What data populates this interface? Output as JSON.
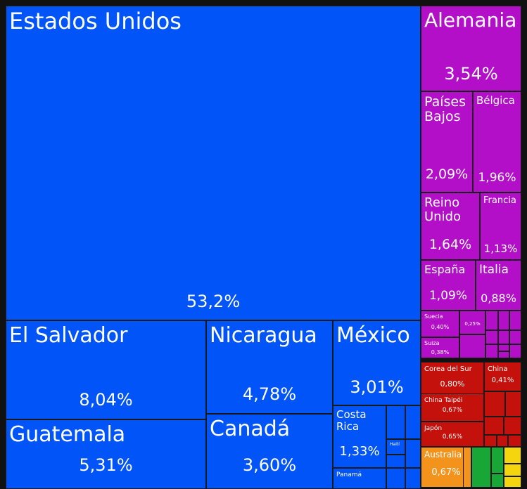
{
  "chart_data": {
    "type": "treemap",
    "unit": "%",
    "colors": {
      "america": "#0155f8",
      "europe": "#b30fc9",
      "asia": "#c5110b",
      "oceania": "#f4931b",
      "green": "#18a636",
      "yellow": "#f5d50d"
    },
    "items": [
      {
        "name": "Estados Unidos",
        "value": "53,2%",
        "group": "america"
      },
      {
        "name": "El Salvador",
        "value": "8,04%",
        "group": "america"
      },
      {
        "name": "Guatemala",
        "value": "5,31%",
        "group": "america"
      },
      {
        "name": "Nicaragua",
        "value": "4,78%",
        "group": "america"
      },
      {
        "name": "Canadá",
        "value": "3,60%",
        "group": "america"
      },
      {
        "name": "México",
        "value": "3,01%",
        "group": "america"
      },
      {
        "name": "Costa Rica",
        "value": "1,33%",
        "group": "america"
      },
      {
        "name": "Haití",
        "value": "",
        "group": "america"
      },
      {
        "name": "Panamá",
        "value": "",
        "group": "america"
      },
      {
        "name": "Alemania",
        "value": "3,54%",
        "group": "europe"
      },
      {
        "name": "Países Bajos",
        "value": "2,09%",
        "group": "europe"
      },
      {
        "name": "Bélgica",
        "value": "1,96%",
        "group": "europe"
      },
      {
        "name": "Reino Unido",
        "value": "1,64%",
        "group": "europe"
      },
      {
        "name": "Francia",
        "value": "1,13%",
        "group": "europe"
      },
      {
        "name": "España",
        "value": "1,09%",
        "group": "europe"
      },
      {
        "name": "Italia",
        "value": "0,88%",
        "group": "europe"
      },
      {
        "name": "Suecia",
        "value": "0,40%",
        "group": "europe"
      },
      {
        "name": "Suiza",
        "value": "0,38%",
        "group": "europe"
      },
      {
        "name": "",
        "value": "0,25%",
        "group": "europe"
      },
      {
        "name": "Corea del Sur",
        "value": "0,80%",
        "group": "asia"
      },
      {
        "name": "China",
        "value": "0,41%",
        "group": "asia"
      },
      {
        "name": "China Taipéi",
        "value": "0,67%",
        "group": "asia"
      },
      {
        "name": "Japón",
        "value": "0,65%",
        "group": "asia"
      },
      {
        "name": "Australia",
        "value": "0,67%",
        "group": "oceania"
      }
    ]
  }
}
